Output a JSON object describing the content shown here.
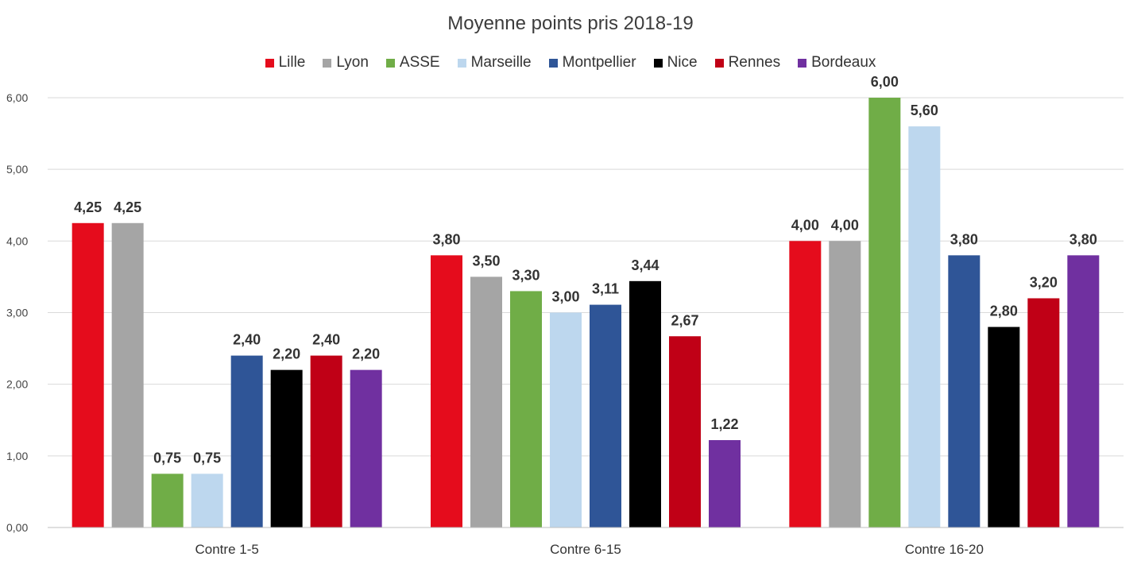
{
  "chart_data": {
    "type": "bar",
    "title": "Moyenne points pris 2018-19",
    "categories": [
      "Contre 1-5",
      "Contre 6-15",
      "Contre 16-20"
    ],
    "series": [
      {
        "name": "Lille",
        "color": "#e50c1c",
        "values": [
          4.25,
          3.8,
          4.0
        ],
        "labels": [
          "4,25",
          "3,80",
          "4,00"
        ]
      },
      {
        "name": "Lyon",
        "color": "#a5a5a5",
        "values": [
          4.25,
          3.5,
          4.0
        ],
        "labels": [
          "4,25",
          "3,50",
          "4,00"
        ]
      },
      {
        "name": "ASSE",
        "color": "#70ad47",
        "values": [
          0.75,
          3.3,
          6.0
        ],
        "labels": [
          "0,75",
          "3,30",
          "6,00"
        ]
      },
      {
        "name": "Marseille",
        "color": "#bdd7ee",
        "values": [
          0.75,
          3.0,
          5.6
        ],
        "labels": [
          "0,75",
          "3,00",
          "5,60"
        ]
      },
      {
        "name": "Montpellier",
        "color": "#2f5597",
        "values": [
          2.4,
          3.11,
          3.8
        ],
        "labels": [
          "2,40",
          "3,11",
          "3,80"
        ]
      },
      {
        "name": "Nice",
        "color": "#000000",
        "values": [
          2.2,
          3.44,
          2.8
        ],
        "labels": [
          "2,20",
          "3,44",
          "2,80"
        ]
      },
      {
        "name": "Rennes",
        "color": "#c00016",
        "values": [
          2.4,
          2.67,
          3.2
        ],
        "labels": [
          "2,40",
          "2,67",
          "3,20"
        ]
      },
      {
        "name": "Bordeaux",
        "color": "#7030a0",
        "values": [
          2.2,
          1.22,
          3.8
        ],
        "labels": [
          "2,20",
          "1,22",
          "3,80"
        ]
      }
    ],
    "ylim": [
      0,
      6
    ],
    "yticks": [
      0,
      1,
      2,
      3,
      4,
      5,
      6
    ],
    "ytick_labels": [
      "0,00",
      "1,00",
      "2,00",
      "3,00",
      "4,00",
      "5,00",
      "6,00"
    ],
    "grid": true,
    "legend": "top"
  }
}
